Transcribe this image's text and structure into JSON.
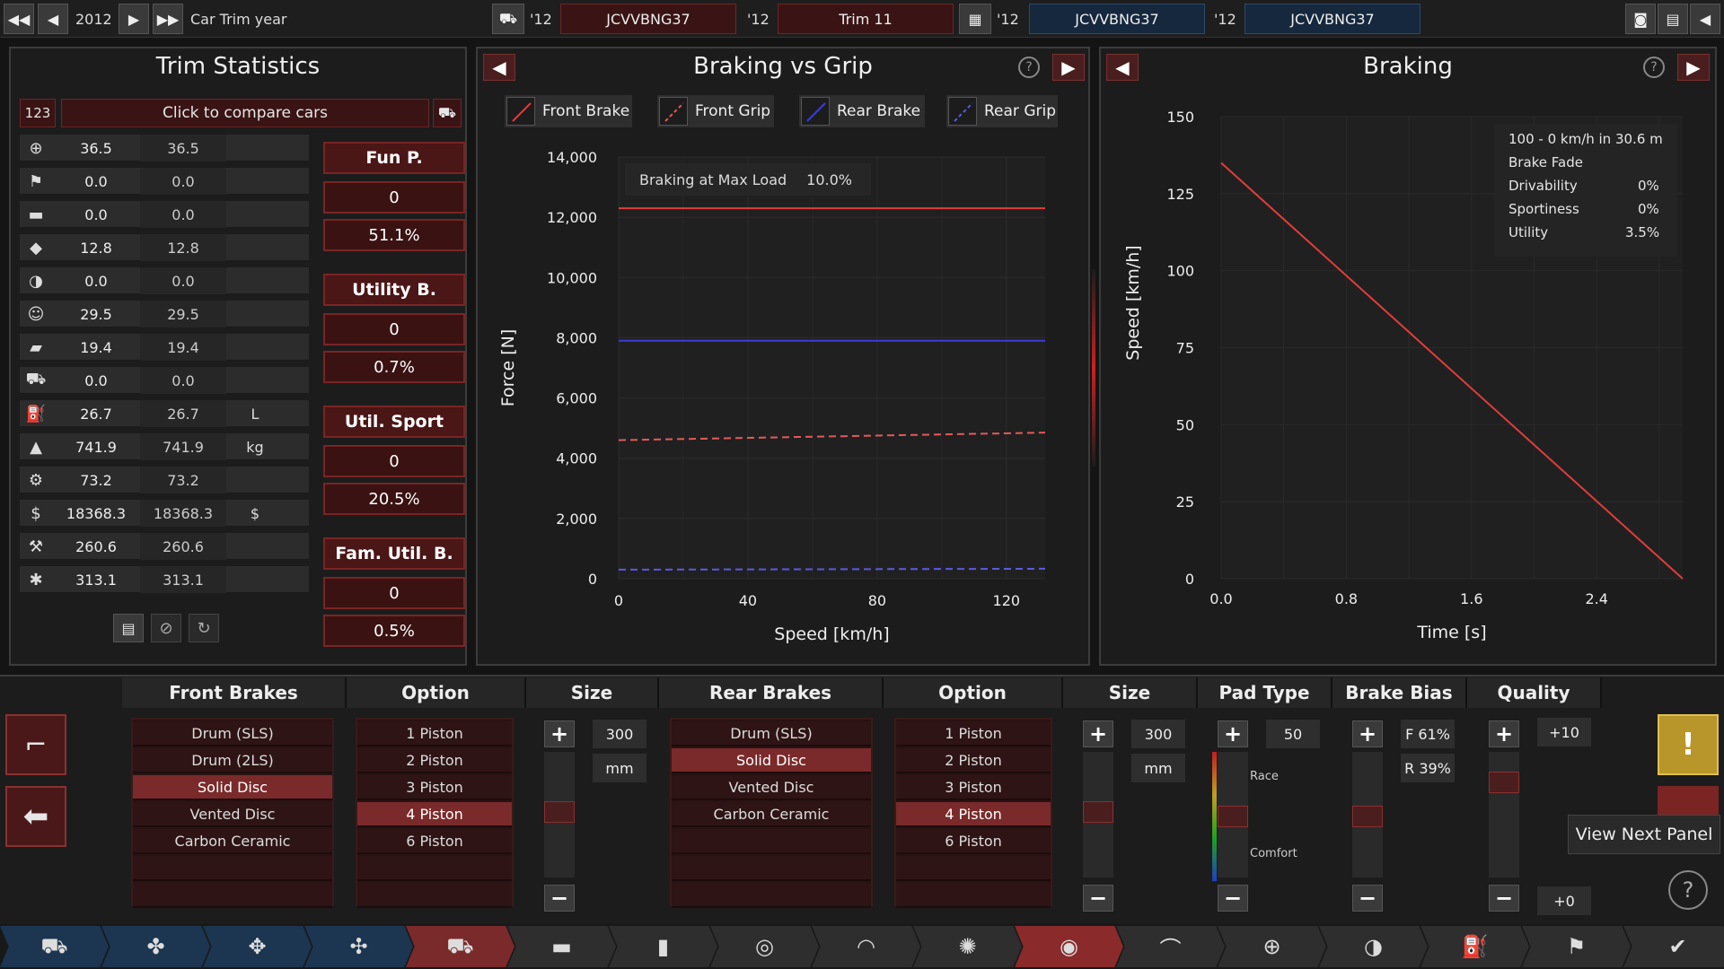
{
  "topbar": {
    "year": "2012",
    "year_label": "Car Trim year",
    "slots": [
      {
        "year": "'12",
        "name": "JCVVBNG37"
      },
      {
        "year": "'12",
        "name": "Trim 11"
      },
      {
        "year": "'12",
        "name": "JCVVBNG37"
      },
      {
        "year": "'12",
        "name": "JCVVBNG37"
      }
    ]
  },
  "trim_stats": {
    "title": "Trim Statistics",
    "compare_id": "123",
    "compare_label": "Click to compare cars",
    "rows": [
      {
        "icon": "steering-wheel-icon",
        "glyph": "⊕",
        "v1": "36.5",
        "v2": "36.5",
        "unit": ""
      },
      {
        "icon": "race-flag-icon",
        "glyph": "⚑",
        "v1": "0.0",
        "v2": "0.0",
        "unit": ""
      },
      {
        "icon": "seat-icon",
        "glyph": "▬",
        "v1": "0.0",
        "v2": "0.0",
        "unit": ""
      },
      {
        "icon": "diamond-icon",
        "glyph": "◆",
        "v1": "12.8",
        "v2": "12.8",
        "unit": ""
      },
      {
        "icon": "safety-icon",
        "glyph": "◑",
        "v1": "0.0",
        "v2": "0.0",
        "unit": ""
      },
      {
        "icon": "passengers-icon",
        "glyph": "☺",
        "v1": "29.5",
        "v2": "29.5",
        "unit": ""
      },
      {
        "icon": "utility-vehicle-icon",
        "glyph": "▰",
        "v1": "19.4",
        "v2": "19.4",
        "unit": ""
      },
      {
        "icon": "offroad-icon",
        "glyph": "⛟",
        "v1": "0.0",
        "v2": "0.0",
        "unit": ""
      },
      {
        "icon": "fuel-icon",
        "glyph": "⛽",
        "v1": "26.7",
        "v2": "26.7",
        "unit": "L"
      },
      {
        "icon": "weight-icon",
        "glyph": "▲",
        "v1": "741.9",
        "v2": "741.9",
        "unit": "kg"
      },
      {
        "icon": "engineering-time-icon",
        "glyph": "⚙",
        "v1": "73.2",
        "v2": "73.2",
        "unit": ""
      },
      {
        "icon": "cost-icon",
        "glyph": "$",
        "v1": "18368.3",
        "v2": "18368.3",
        "unit": "$"
      },
      {
        "icon": "production-icon",
        "glyph": "⚒",
        "v1": "260.6",
        "v2": "260.6",
        "unit": ""
      },
      {
        "icon": "service-icon",
        "glyph": "✱",
        "v1": "313.1",
        "v2": "313.1",
        "unit": ""
      }
    ],
    "scores": [
      {
        "label": "Fun P.",
        "value": "0",
        "pct": "51.1%"
      },
      {
        "label": "Utility B.",
        "value": "0",
        "pct": "0.7%"
      },
      {
        "label": "Util. Sport",
        "value": "0",
        "pct": "20.5%"
      },
      {
        "label": "Fam. Util. B.",
        "value": "0",
        "pct": "0.5%"
      }
    ]
  },
  "braking_grip": {
    "title": "Braking vs Grip",
    "legend": [
      "Front Brake",
      "Front Grip",
      "Rear Brake",
      "Rear Grip"
    ],
    "info_label": "Braking at Max Load",
    "info_value": "10.0%",
    "ylabel": "Force [N]",
    "xlabel": "Speed [km/h]",
    "yticks": [
      "14,000",
      "12,000",
      "10,000",
      "8,000",
      "6,000",
      "4,000",
      "2,000",
      "0"
    ],
    "xticks": [
      "0",
      "40",
      "80",
      "120"
    ]
  },
  "braking": {
    "title": "Braking",
    "ylabel": "Speed [km/h]",
    "xlabel": "Time [s]",
    "yticks": [
      "150",
      "125",
      "100",
      "75",
      "50",
      "25",
      "0"
    ],
    "xticks": [
      "0.0",
      "0.8",
      "1.6",
      "2.4"
    ],
    "info_title": "100 - 0 km/h in 30.6 m",
    "info_sub": "Brake Fade",
    "info_rows": [
      {
        "k": "Drivability",
        "v": "0%"
      },
      {
        "k": "Sportiness",
        "v": "0%"
      },
      {
        "k": "Utility",
        "v": "3.5%"
      }
    ]
  },
  "chart_data": [
    {
      "type": "line",
      "title": "Braking vs Grip",
      "xlabel": "Speed [km/h]",
      "ylabel": "Force [N]",
      "xlim": [
        0,
        132
      ],
      "ylim": [
        0,
        14000
      ],
      "series": [
        {
          "name": "Front Brake",
          "color": "#e23c3c",
          "style": "solid",
          "x": [
            0,
            132
          ],
          "y": [
            12300,
            12300
          ]
        },
        {
          "name": "Front Grip",
          "color": "#e25a5a",
          "style": "dashed",
          "x": [
            0,
            132
          ],
          "y": [
            4600,
            4850
          ]
        },
        {
          "name": "Rear Brake",
          "color": "#3c3ce2",
          "style": "solid",
          "x": [
            0,
            132
          ],
          "y": [
            7900,
            7900
          ]
        },
        {
          "name": "Rear Grip",
          "color": "#5a5ae2",
          "style": "dashed",
          "x": [
            0,
            132
          ],
          "y": [
            300,
            330
          ]
        }
      ]
    },
    {
      "type": "line",
      "title": "Braking",
      "xlabel": "Time [s]",
      "ylabel": "Speed [km/h]",
      "xlim": [
        0,
        2.95
      ],
      "ylim": [
        0,
        150
      ],
      "series": [
        {
          "name": "",
          "color": "#e23c3c",
          "style": "solid",
          "x": [
            0,
            2.95
          ],
          "y": [
            135,
            0
          ]
        }
      ]
    }
  ],
  "bottom": {
    "headers": {
      "front_brakes": "Front Brakes",
      "option1": "Option",
      "size1": "Size",
      "rear_brakes": "Rear Brakes",
      "option2": "Option",
      "size2": "Size",
      "pad_type": "Pad Type",
      "brake_bias": "Brake Bias",
      "quality": "Quality"
    },
    "front_types": [
      "Drum (SLS)",
      "Drum (2LS)",
      "Solid Disc",
      "Vented Disc",
      "Carbon Ceramic"
    ],
    "front_selected": 2,
    "front_pistons": [
      "1 Piston",
      "2 Piston",
      "3 Piston",
      "4 Piston",
      "6 Piston"
    ],
    "front_piston_selected": 3,
    "rear_types": [
      "Drum (SLS)",
      "Solid Disc",
      "Vented Disc",
      "Carbon Ceramic"
    ],
    "rear_selected": 1,
    "rear_pistons": [
      "1 Piston",
      "2 Piston",
      "3 Piston",
      "4 Piston",
      "6 Piston"
    ],
    "rear_piston_selected": 3,
    "front_size": "300",
    "front_unit": "mm",
    "rear_size": "300",
    "rear_unit": "mm",
    "pad_value": "50",
    "pad_race": "Race",
    "pad_comfort": "Comfort",
    "bias_front": "F 61%",
    "bias_rear": "R 39%",
    "quality_top": "+10",
    "quality_bottom": "+0",
    "tooltip": "View Next Panel"
  },
  "nav": [
    "car-body-icon",
    "engine-design-icon",
    "engine-icon",
    "engine-tune-icon",
    "car-trim-icon",
    "chassis-icon",
    "suspension-icon",
    "drivetrain-icon",
    "tyres-icon",
    "wheels-icon",
    "brakes-icon",
    "aero-icon",
    "interior-icon",
    "safety-icon",
    "fuel-icon",
    "test-track-icon",
    "finish-icon"
  ]
}
